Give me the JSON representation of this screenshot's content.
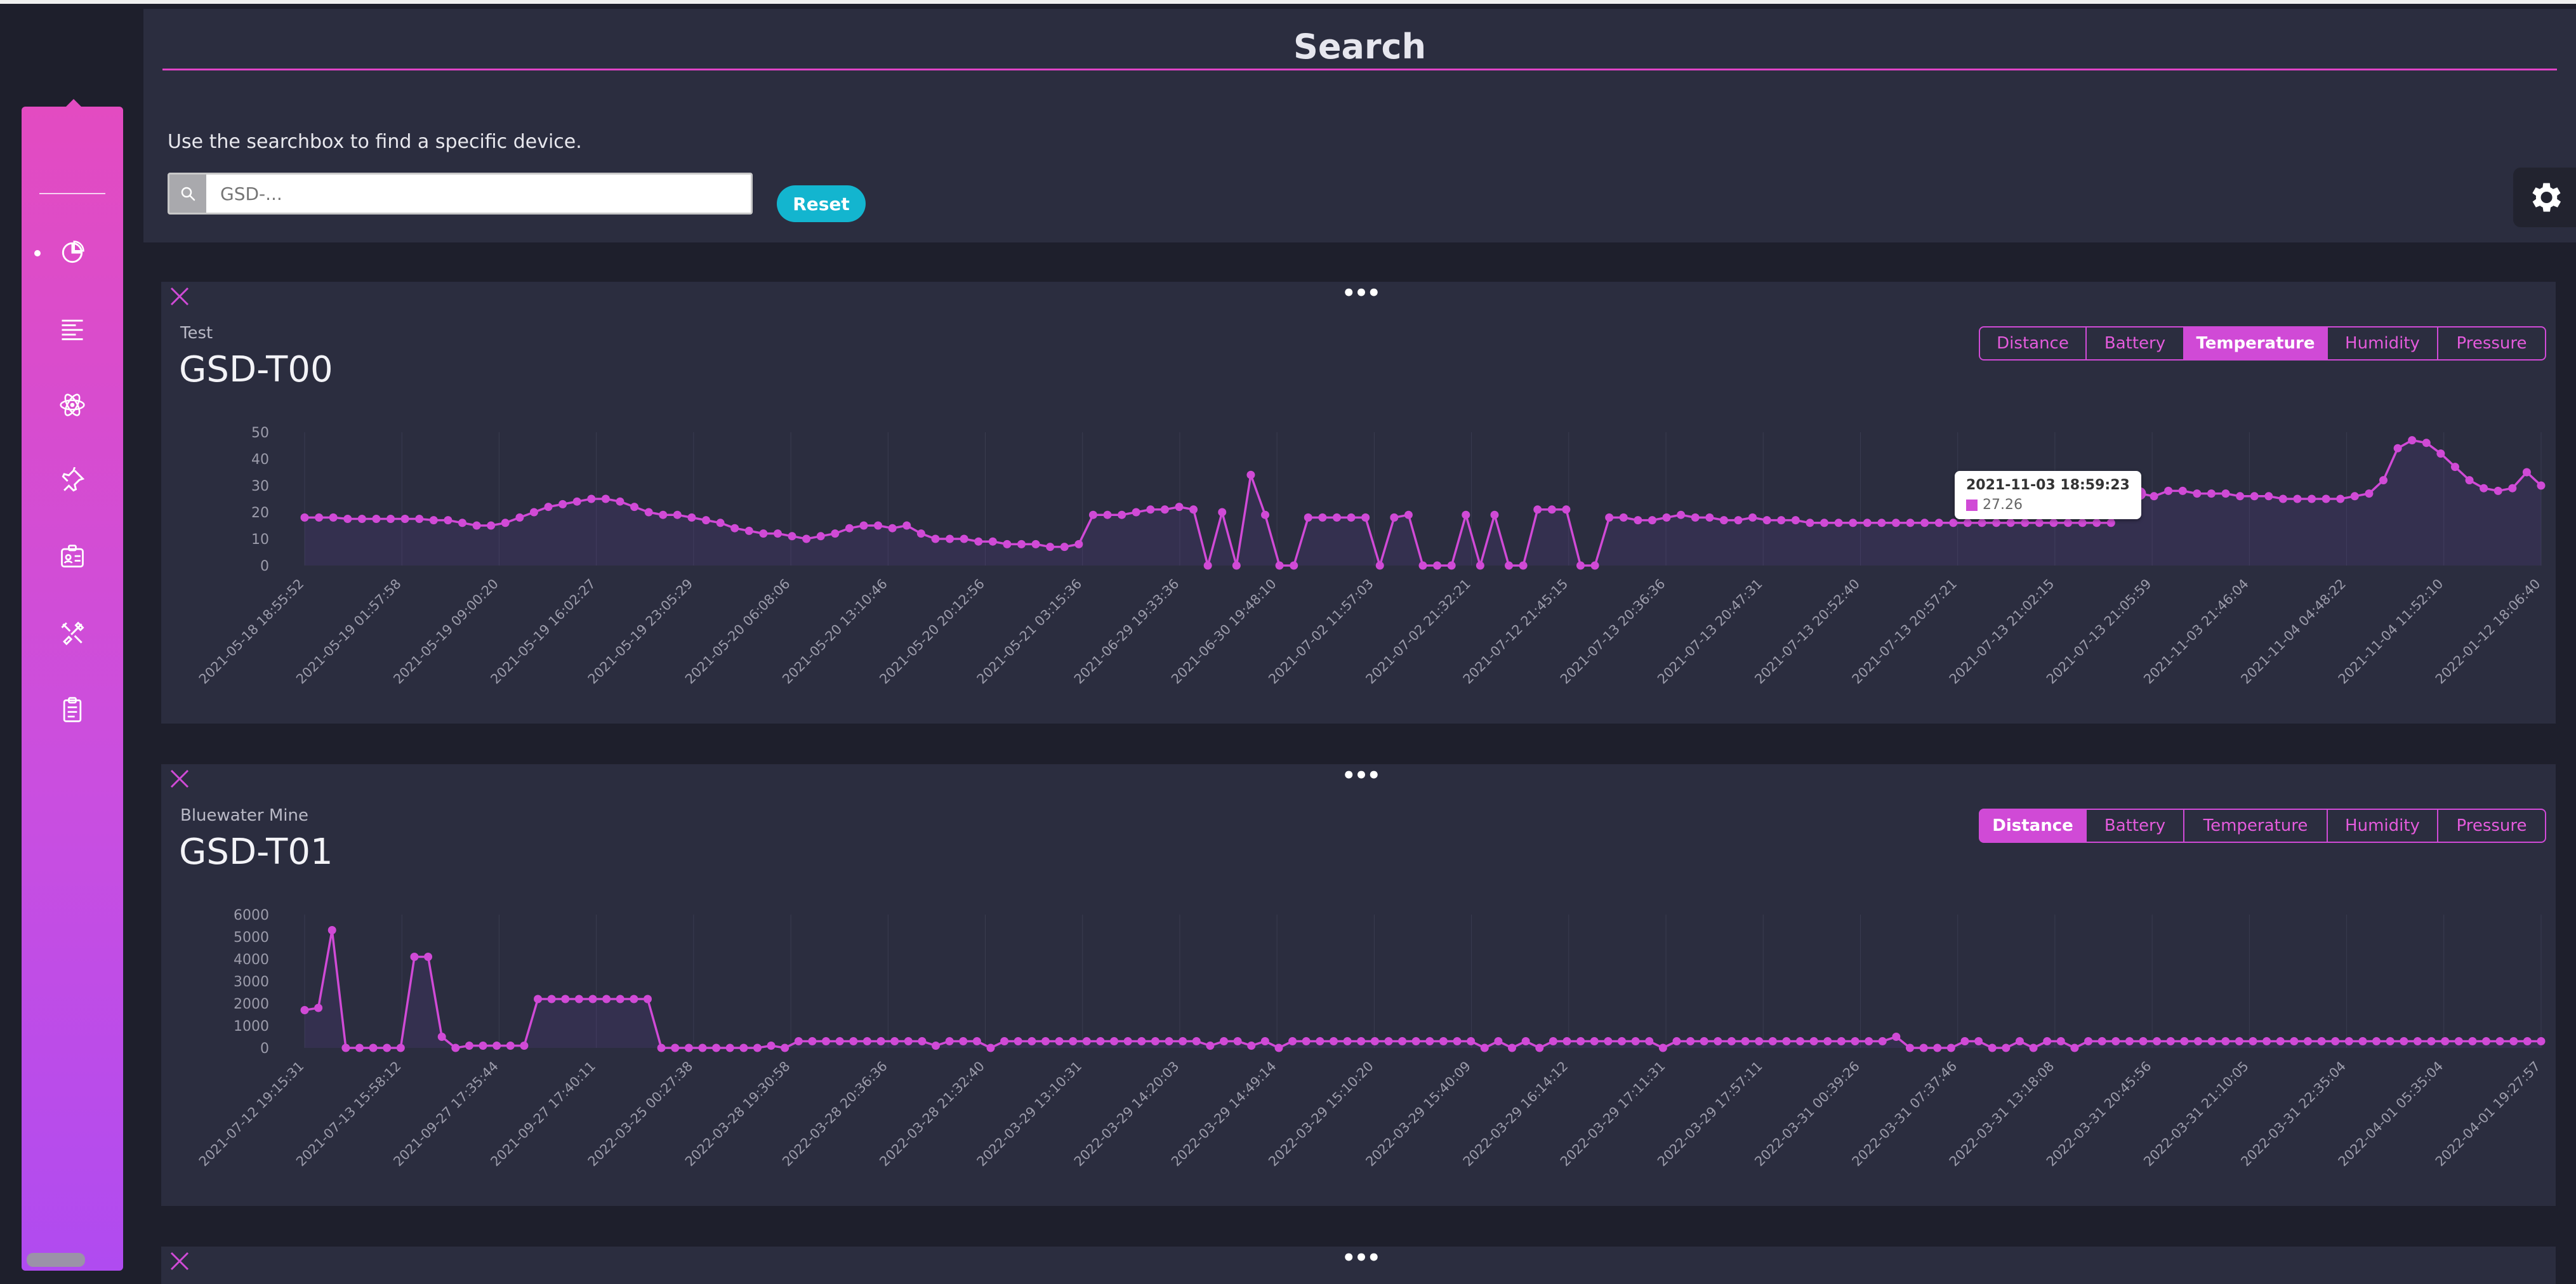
{
  "search": {
    "title": "Search",
    "help": "Use the searchbox to find a specific device.",
    "placeholder": "GSD-...",
    "reset_label": "Reset"
  },
  "sidebar": {
    "items": [
      {
        "icon": "pie-chart-icon",
        "active": true
      },
      {
        "icon": "align-left-icon",
        "active": false
      },
      {
        "icon": "atom-icon",
        "active": false
      },
      {
        "icon": "pin-icon",
        "active": false
      },
      {
        "icon": "id-badge-icon",
        "active": false
      },
      {
        "icon": "tools-icon",
        "active": false
      },
      {
        "icon": "clipboard-icon",
        "active": false
      }
    ]
  },
  "colors": {
    "accent": "#d04ad6",
    "reset": "#13b5cf",
    "panel": "#2b2d3f",
    "background": "#1e1f2c"
  },
  "cards": [
    {
      "location": "Test",
      "device": "GSD-T00",
      "tabs": [
        "Distance",
        "Battery",
        "Temperature",
        "Humidity",
        "Pressure"
      ],
      "active_tab": "Temperature",
      "tooltip": {
        "title": "2021-11-03 18:59:23",
        "value": "27.26"
      }
    },
    {
      "location": "Bluewater Mine",
      "device": "GSD-T01",
      "tabs": [
        "Distance",
        "Battery",
        "Temperature",
        "Humidity",
        "Pressure"
      ],
      "active_tab": "Distance"
    }
  ],
  "chart_data": [
    {
      "type": "line",
      "ylim": [
        0,
        50
      ],
      "yticks": [
        0,
        10,
        20,
        30,
        40,
        50
      ],
      "xtick_labels": [
        "2021-05-18 18:55:52",
        "2021-05-19 01:57:58",
        "2021-05-19 09:00:20",
        "2021-05-19 16:02:27",
        "2021-05-19 23:05:29",
        "2021-05-20 06:08:06",
        "2021-05-20 13:10:46",
        "2021-05-20 20:12:56",
        "2021-05-21 03:15:36",
        "2021-06-29 19:33:36",
        "2021-06-30 19:48:10",
        "2021-07-02 11:57:03",
        "2021-07-02 21:32:21",
        "2021-07-12 21:45:15",
        "2021-07-13 20:36:36",
        "2021-07-13 20:47:31",
        "2021-07-13 20:52:40",
        "2021-07-13 20:57:21",
        "2021-07-13 21:02:15",
        "2021-07-13 21:05:59",
        "2021-11-03 21:46:04",
        "2021-11-04 04:48:22",
        "2021-11-04 11:52:10",
        "2022-01-12 18:06:40"
      ],
      "values": [
        18,
        18,
        18,
        17.5,
        17.5,
        17.5,
        17.5,
        17.5,
        17.5,
        17,
        17,
        16,
        15,
        15,
        16,
        18,
        20,
        22,
        23,
        24,
        25,
        25,
        24,
        22,
        20,
        19,
        19,
        18,
        17,
        16,
        14,
        13,
        12,
        12,
        11,
        10,
        11,
        12,
        14,
        15,
        15,
        14,
        15,
        12,
        10,
        10,
        10,
        9,
        9,
        8,
        8,
        8,
        7,
        7,
        8,
        19,
        19,
        19,
        20,
        21,
        21,
        22,
        21,
        0,
        20,
        0,
        34,
        19,
        0,
        0,
        18,
        18,
        18,
        18,
        18,
        0,
        18,
        19,
        0,
        0,
        0,
        19,
        0,
        19,
        0,
        0,
        21,
        21,
        21,
        0,
        0,
        18,
        18,
        17,
        17,
        18,
        19,
        18,
        18,
        17,
        17,
        18,
        17,
        17,
        17,
        16,
        16,
        16,
        16,
        16,
        16,
        16,
        16,
        16,
        16,
        16,
        16,
        16,
        16,
        16,
        16,
        16,
        16,
        16,
        16,
        16,
        16,
        27.26,
        27,
        26,
        28,
        28,
        27,
        27,
        27,
        26,
        26,
        26,
        25,
        25,
        25,
        25,
        25,
        26,
        27,
        32,
        44,
        47,
        46,
        42,
        37,
        32,
        29,
        28,
        29,
        35,
        30
      ],
      "highlight_index": 128
    },
    {
      "type": "line",
      "ylim": [
        0,
        6000
      ],
      "yticks": [
        0,
        1000,
        2000,
        3000,
        4000,
        5000,
        6000
      ],
      "xtick_labels": [
        "2021-07-12 19:15:31",
        "2021-07-13 15:58:12",
        "2021-09-27 17:35:44",
        "2021-09-27 17:40:11",
        "2022-03-25 00:27:38",
        "2022-03-28 19:30:58",
        "2022-03-28 20:36:36",
        "2022-03-28 21:32:40",
        "2022-03-29 13:10:31",
        "2022-03-29 14:20:03",
        "2022-03-29 14:49:14",
        "2022-03-29 15:10:20",
        "2022-03-29 15:40:09",
        "2022-03-29 16:14:12",
        "2022-03-29 17:11:31",
        "2022-03-29 17:57:11",
        "2022-03-31 00:39:26",
        "2022-03-31 07:37:46",
        "2022-03-31 13:18:08",
        "2022-03-31 20:45:56",
        "2022-03-31 21:10:05",
        "2022-03-31 22:35:04",
        "2022-04-01 05:35:04",
        "2022-04-01 19:27:57"
      ],
      "values": [
        1700,
        1800,
        5300,
        0,
        0,
        0,
        0,
        0,
        4100,
        4100,
        500,
        0,
        100,
        100,
        100,
        100,
        100,
        2200,
        2200,
        2200,
        2200,
        2200,
        2200,
        2200,
        2200,
        2200,
        0,
        0,
        0,
        0,
        0,
        0,
        0,
        0,
        100,
        0,
        300,
        300,
        300,
        300,
        300,
        300,
        300,
        300,
        300,
        300,
        100,
        300,
        300,
        300,
        0,
        300,
        300,
        300,
        300,
        300,
        300,
        300,
        300,
        300,
        300,
        300,
        300,
        300,
        300,
        300,
        100,
        300,
        300,
        100,
        300,
        0,
        300,
        300,
        300,
        300,
        300,
        300,
        300,
        300,
        300,
        300,
        300,
        300,
        300,
        300,
        0,
        300,
        0,
        300,
        0,
        300,
        300,
        300,
        300,
        300,
        300,
        300,
        300,
        0,
        300,
        300,
        300,
        300,
        300,
        300,
        300,
        300,
        300,
        300,
        300,
        300,
        300,
        300,
        300,
        300,
        500,
        0,
        0,
        0,
        0,
        300,
        300,
        0,
        0,
        300,
        0,
        300,
        300,
        0,
        300,
        300,
        300,
        300,
        300,
        300,
        300,
        300,
        300,
        300,
        300,
        300,
        300,
        300,
        300,
        300,
        300,
        300,
        300,
        300,
        300,
        300,
        300,
        300,
        300,
        300,
        300,
        300,
        300,
        300,
        300,
        300,
        300,
        300
      ]
    }
  ]
}
